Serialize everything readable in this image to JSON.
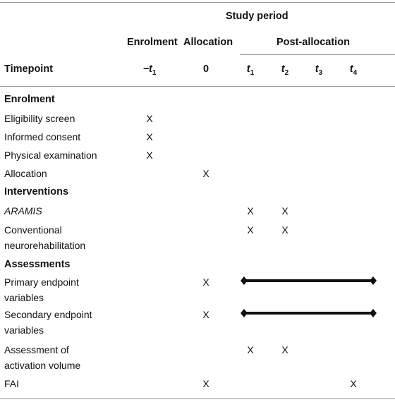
{
  "header": {
    "study_period": "Study period",
    "enrolment": "Enrolment",
    "allocation": "Allocation",
    "post_allocation": "Post-allocation",
    "timepoint": "Timepoint",
    "tp_enrol_main": "−t",
    "tp_enrol_sub": "1",
    "tp_alloc": "0",
    "tp_t1_main": "t",
    "tp_t1_sub": "1",
    "tp_t2_main": "t",
    "tp_t2_sub": "2",
    "tp_t3_main": "t",
    "tp_t3_sub": "3",
    "tp_t4_main": "t",
    "tp_t4_sub": "4"
  },
  "sections": {
    "enrolment": "Enrolment",
    "interventions": "Interventions",
    "assessments": "Assessments"
  },
  "rows": {
    "eligibility": "Eligibility screen",
    "consent": "Informed consent",
    "physical": "Physical examination",
    "allocation": "Allocation",
    "aramis": "ARAMIS",
    "conv_1": "Conventional",
    "conv_2": "neurorehabilitation",
    "primary_1": "Primary endpoint",
    "primary_2": "variables",
    "secondary_1": "Secondary endpoint",
    "secondary_2": "variables",
    "activation_1": "Assessment of",
    "activation_2": "activation volume",
    "fai": "FAI"
  },
  "mark": "X"
}
